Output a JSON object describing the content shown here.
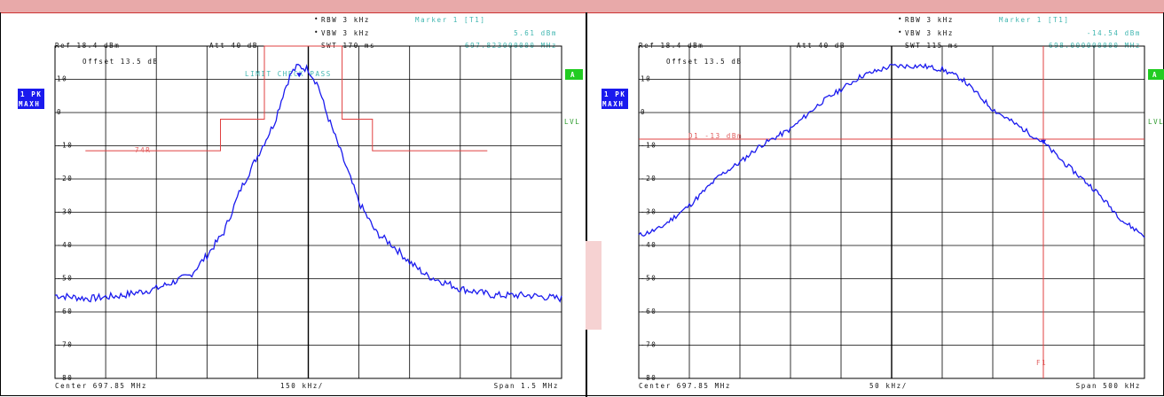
{
  "colors": {
    "trace": "#1a1aee",
    "limit": "#e04040",
    "grid": "#000000",
    "header_cyan": "#3fb6b0",
    "badge_blue": "#1a1aee",
    "badge_green": "#22cc22"
  },
  "left": {
    "rbw": "RBW 3 kHz",
    "vbw": "VBW 3 kHz",
    "marker_title": "Marker 1 [T1]",
    "marker_level": "5.61 dBm",
    "marker_freq": "697.823000000 MHz",
    "ref": "Ref  18.4 dBm",
    "att": "Att  40 dB",
    "swt": "SWT 170 ms",
    "offset": "Offset  13.5 dB",
    "limit_check": "LIMIT CHECK    PASS",
    "limit_label": "74R",
    "badge_top": "1 PK",
    "badge_bottom": "MAXH",
    "side_a": "A",
    "side_lvl": "LVL",
    "center": "Center 697.85 MHz",
    "div": "150 kHz/",
    "span": "Span 1.5 MHz"
  },
  "right": {
    "rbw": "RBW 3 kHz",
    "vbw": "VBW 3 kHz",
    "marker_title": "Marker 1 [T1]",
    "marker_level": "-14.54 dBm",
    "marker_freq": "698.000000000 MHz",
    "ref": "Ref  18.4 dBm",
    "att": "Att  40 dB",
    "swt": "SWT 115 ms",
    "offset": "Offset  13.5 dB",
    "line_label": "D1 -13 dBm",
    "f1_label": "F1",
    "badge_top": "1 PK",
    "badge_bottom": "MAXH",
    "side_a": "A",
    "side_lvl": "LVL",
    "center": "Center 697.85 MHz",
    "div": "50 kHz/",
    "span": "Span 500 kHz"
  },
  "chart_data": [
    {
      "type": "line",
      "y_tick_labels": [
        "10",
        "0",
        "-10",
        "-20",
        "-30",
        "-40",
        "-50",
        "-60",
        "-70",
        "-80"
      ],
      "ylim": [
        -85,
        15
      ],
      "xlim": [
        697.1,
        698.6
      ],
      "grid": true,
      "series": [
        {
          "x": [
            697.1,
            697.2,
            697.3,
            697.4,
            697.45,
            697.5,
            697.55,
            697.6,
            697.65,
            697.7,
            697.75,
            697.78,
            697.8,
            697.82,
            697.85,
            697.88,
            697.9,
            697.95,
            698.0,
            698.05,
            698.1,
            698.15,
            698.2,
            698.25,
            698.3,
            698.4,
            698.5,
            698.6
          ],
          "y": [
            -60,
            -61,
            -60,
            -58,
            -56,
            -54,
            -48,
            -41,
            -28,
            -18,
            -8,
            2,
            7,
            9,
            8,
            3,
            -4,
            -18,
            -32,
            -41,
            -45,
            -50,
            -54,
            -56,
            -58,
            -60,
            -60,
            -61
          ]
        }
      ],
      "limit_line": {
        "x": [
          697.19,
          697.59,
          697.59,
          697.72,
          697.72,
          697.75,
          697.75,
          697.95,
          697.95,
          698.04,
          698.04,
          698.38
        ],
        "y": [
          -16.5,
          -16.5,
          -7,
          -7,
          15,
          15,
          15,
          15,
          -7,
          -7,
          -16.5,
          -16.5
        ]
      },
      "marker": {
        "x": 697.823,
        "y": 5.61
      }
    },
    {
      "type": "line",
      "y_tick_labels": [
        "10",
        "0",
        "-10",
        "-20",
        "-30",
        "-40",
        "-50",
        "-60",
        "-70",
        "-80"
      ],
      "ylim": [
        -85,
        15
      ],
      "xlim": [
        697.6,
        698.1
      ],
      "grid": true,
      "series": [
        {
          "x": [
            697.6,
            697.62,
            697.65,
            697.68,
            697.7,
            697.72,
            697.75,
            697.78,
            697.8,
            697.82,
            697.85,
            697.88,
            697.9,
            697.92,
            697.95,
            697.98,
            698.0,
            698.02,
            698.05,
            698.08,
            698.1
          ],
          "y": [
            -42,
            -40,
            -33,
            -24,
            -20,
            -15,
            -10,
            -2,
            2,
            6,
            9,
            9,
            8,
            5,
            -4,
            -10,
            -14,
            -20,
            -28,
            -38,
            -42
          ]
        }
      ],
      "threshold": {
        "y": -13
      },
      "f1_marker": {
        "x": 698.0,
        "y": -14.54
      }
    }
  ]
}
